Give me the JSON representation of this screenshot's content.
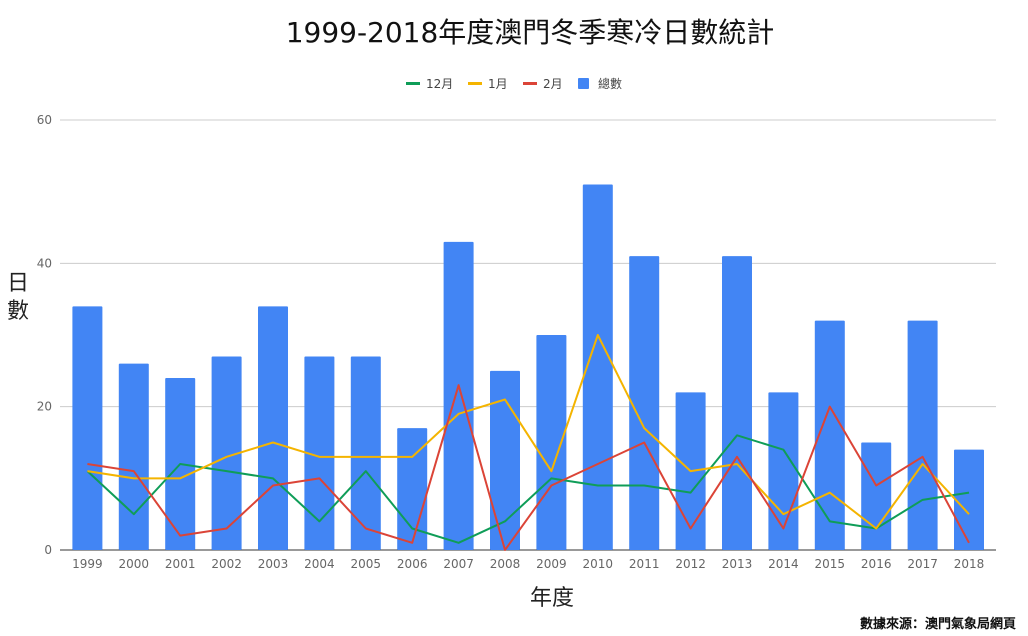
{
  "chart_data": {
    "type": "bar",
    "title": "1999-2018年度澳門冬季寒冷日數統計",
    "xlabel": "年度",
    "ylabel": "日數",
    "source": "數據來源：澳門氣象局網頁",
    "ylim": [
      0,
      60
    ],
    "yticks": [
      0,
      20,
      40,
      60
    ],
    "grid": true,
    "legend_position": "top",
    "categories": [
      "1999",
      "2000",
      "2001",
      "2002",
      "2003",
      "2004",
      "2005",
      "2006",
      "2007",
      "2008",
      "2009",
      "2010",
      "2011",
      "2012",
      "2013",
      "2014",
      "2015",
      "2016",
      "2017",
      "2018"
    ],
    "series": [
      {
        "name": "12月",
        "type": "line",
        "color": "#0f9d58",
        "values": [
          11,
          5,
          12,
          11,
          10,
          4,
          11,
          3,
          1,
          4,
          10,
          9,
          9,
          8,
          16,
          14,
          4,
          3,
          7,
          8
        ]
      },
      {
        "name": "1月",
        "type": "line",
        "color": "#f4b400",
        "values": [
          11,
          10,
          10,
          13,
          15,
          13,
          13,
          13,
          19,
          21,
          11,
          30,
          17,
          11,
          12,
          5,
          8,
          3,
          12,
          5
        ]
      },
      {
        "name": "2月",
        "type": "line",
        "color": "#db4437",
        "values": [
          12,
          11,
          2,
          3,
          9,
          10,
          3,
          1,
          23,
          0,
          9,
          12,
          15,
          3,
          13,
          3,
          20,
          9,
          13,
          1
        ]
      },
      {
        "name": "總數",
        "type": "bar",
        "color": "#4285f4",
        "values": [
          34,
          26,
          24,
          27,
          34,
          27,
          27,
          17,
          43,
          25,
          30,
          51,
          41,
          22,
          41,
          22,
          32,
          15,
          32,
          14
        ]
      }
    ]
  }
}
